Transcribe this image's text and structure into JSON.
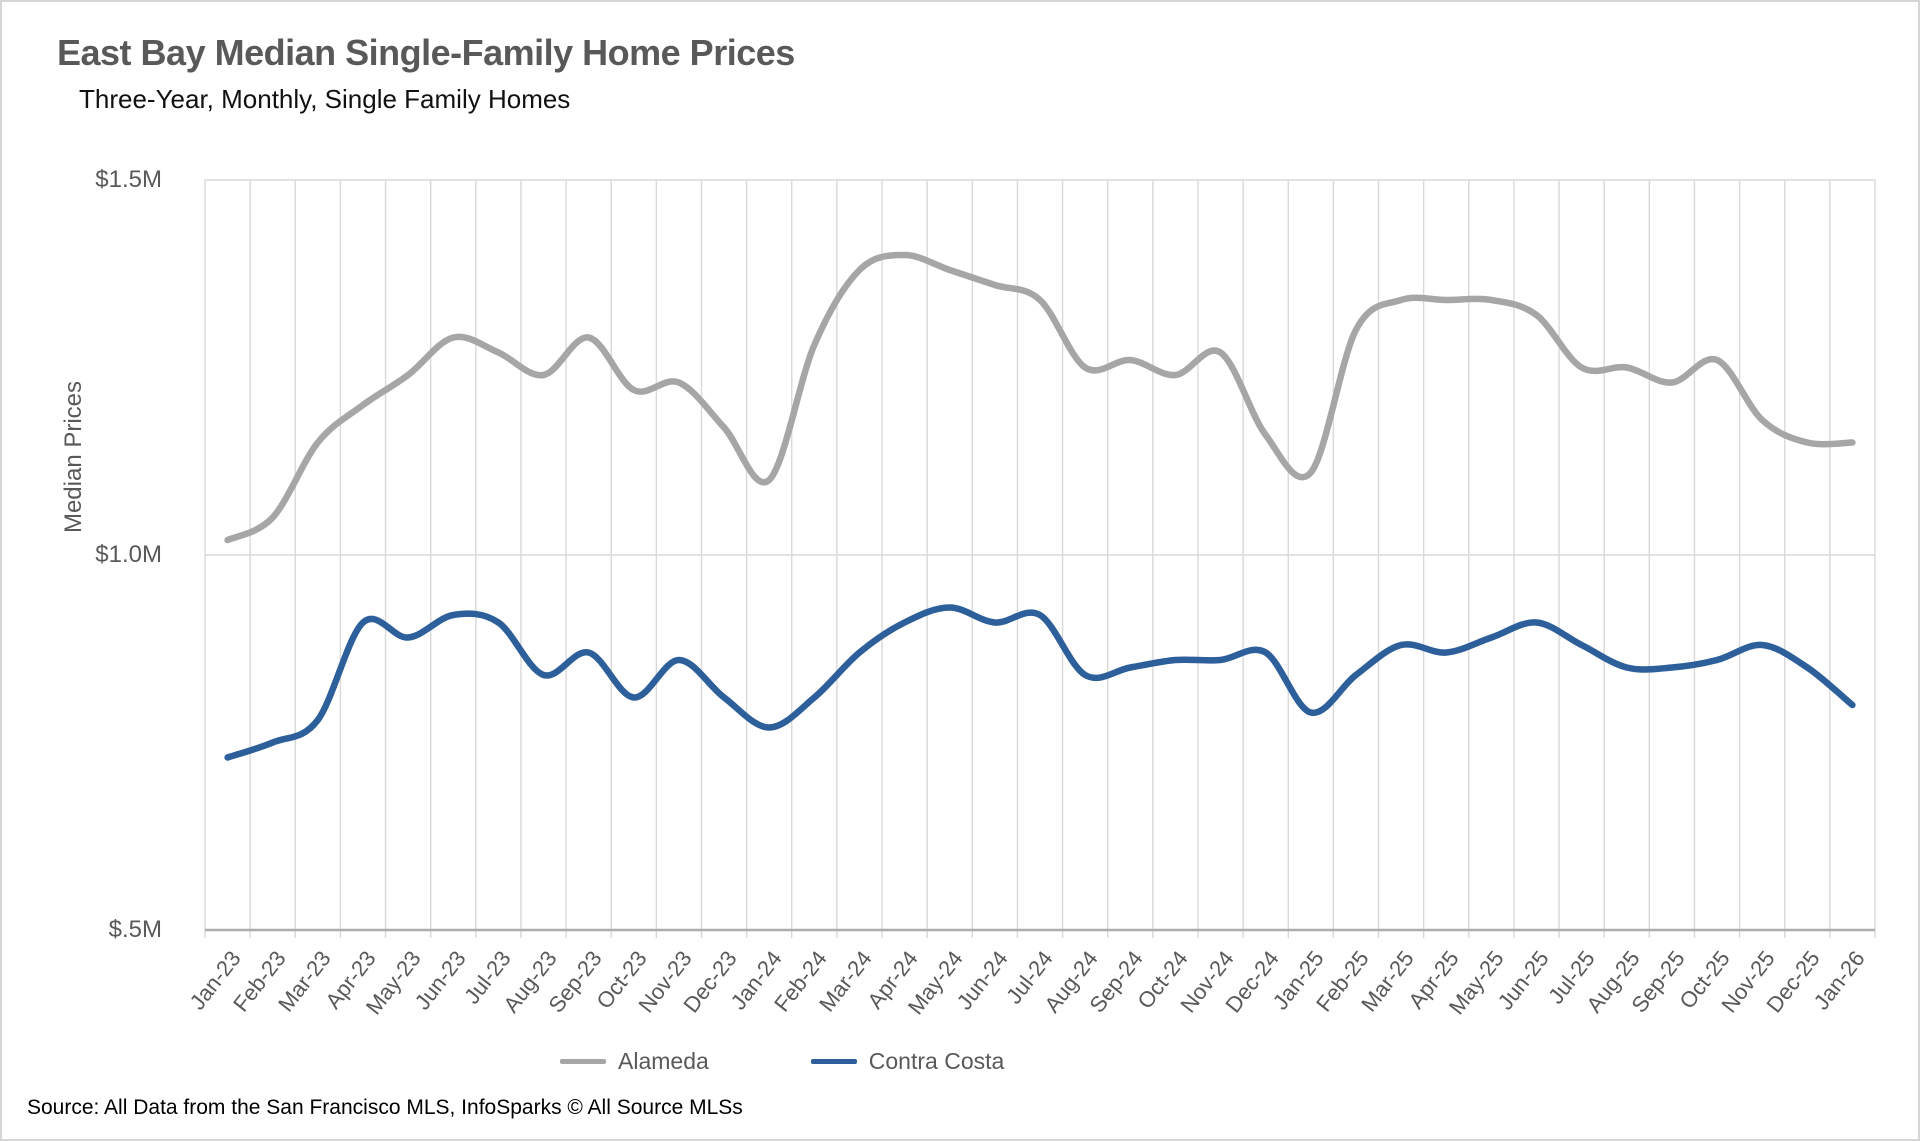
{
  "header": {
    "title": "East Bay Median Single-Family Home Prices",
    "subtitle": "Three-Year, Monthly, Single Family Homes"
  },
  "chart_data": {
    "type": "line",
    "title": "East Bay Median Single-Family Home Prices",
    "subtitle": "Three-Year, Monthly, Single Family Homes",
    "xlabel": "",
    "ylabel": "Median Prices",
    "ylim": [
      0.5,
      1.5
    ],
    "y_ticks": [
      {
        "label": "$1.5M",
        "value": 1.5
      },
      {
        "label": "$1.0M",
        "value": 1.0
      },
      {
        "label": "$.5M",
        "value": 0.5
      }
    ],
    "grid": "vertical gridline per month; horizontal gridlines at y ticks",
    "legend_position": "bottom-center",
    "units": "millions USD",
    "categories": [
      "Jan-23",
      "Feb-23",
      "Mar-23",
      "Apr-23",
      "May-23",
      "Jun-23",
      "Jul-23",
      "Aug-23",
      "Sep-23",
      "Oct-23",
      "Nov-23",
      "Dec-23",
      "Jan-24",
      "Feb-24",
      "Mar-24",
      "Apr-24",
      "May-24",
      "Jun-24",
      "Jul-24",
      "Aug-24",
      "Sep-24",
      "Oct-24",
      "Nov-24",
      "Dec-24",
      "Jan-25",
      "Feb-25",
      "Mar-25",
      "Apr-25",
      "May-25",
      "Jun-25",
      "Jul-25",
      "Aug-25",
      "Sep-25",
      "Oct-25",
      "Nov-25",
      "Dec-25",
      "Jan-26"
    ],
    "series": [
      {
        "name": "Alameda",
        "color": "#a6a6a6",
        "values": [
          1.02,
          1.05,
          1.15,
          1.2,
          1.24,
          1.29,
          1.27,
          1.24,
          1.29,
          1.22,
          1.23,
          1.17,
          1.1,
          1.28,
          1.38,
          1.4,
          1.38,
          1.36,
          1.34,
          1.25,
          1.26,
          1.24,
          1.27,
          1.16,
          1.11,
          1.3,
          1.34,
          1.34,
          1.34,
          1.32,
          1.25,
          1.25,
          1.23,
          1.26,
          1.18,
          1.15,
          1.15
        ]
      },
      {
        "name": "Contra Costa",
        "color": "#2d5f9b",
        "values": [
          0.73,
          0.75,
          0.78,
          0.91,
          0.89,
          0.92,
          0.91,
          0.84,
          0.87,
          0.81,
          0.86,
          0.81,
          0.77,
          0.81,
          0.87,
          0.91,
          0.93,
          0.91,
          0.92,
          0.84,
          0.85,
          0.86,
          0.86,
          0.87,
          0.79,
          0.84,
          0.88,
          0.87,
          0.89,
          0.91,
          0.88,
          0.85,
          0.85,
          0.86,
          0.88,
          0.85,
          0.8
        ]
      }
    ],
    "colors": {
      "gridline": "#d9d9d9",
      "axis_line": "#adadad",
      "tick_label": "#595959",
      "title": "#595959",
      "subtitle": "#111111"
    }
  },
  "legend": {
    "items": [
      {
        "label": "Alameda",
        "color": "#a6a6a6"
      },
      {
        "label": "Contra Costa",
        "color": "#2d5f9b"
      }
    ]
  },
  "footer": {
    "source": "Source: All Data from the San Francisco MLS, InfoSparks © All Source MLSs"
  }
}
